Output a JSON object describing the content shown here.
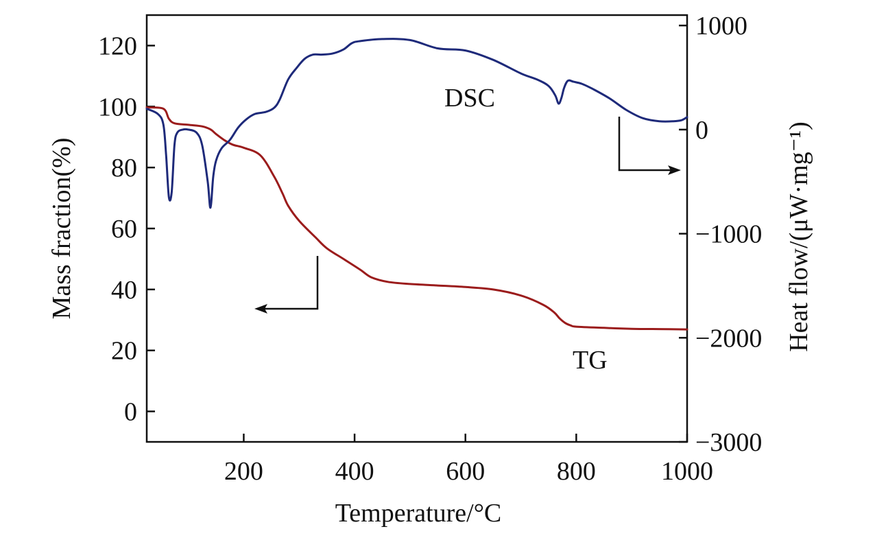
{
  "chart_data": {
    "type": "line",
    "xlabel": "Temperature/°C",
    "ylabel_left": "Mass fraction(%)",
    "ylabel_right": "Heat flow/(μW·mg⁻¹)",
    "xlim": [
      25,
      1000
    ],
    "ylim_left": [
      -10,
      130
    ],
    "ylim_right": [
      -3000,
      1100
    ],
    "x_ticks": [
      200,
      400,
      600,
      800,
      1000
    ],
    "x_tick_labels": [
      "200",
      "400",
      "600",
      "800",
      "1000"
    ],
    "y_left_ticks": [
      0,
      20,
      40,
      60,
      80,
      100,
      120
    ],
    "y_left_tick_labels": [
      "0",
      "20",
      "40",
      "60",
      "80",
      "100",
      "120"
    ],
    "y_right_ticks": [
      -3000,
      -2000,
      -1000,
      0,
      1000
    ],
    "y_right_tick_labels": [
      "−3000",
      "−2000",
      "−1000",
      "0",
      "1000"
    ],
    "grid": false,
    "series": [
      {
        "name": "TG",
        "axis": "left",
        "color": "#9b1c1c",
        "x": [
          25,
          55,
          65,
          75,
          100,
          125,
          140,
          150,
          165,
          180,
          200,
          230,
          255,
          270,
          280,
          300,
          330,
          350,
          380,
          410,
          430,
          460,
          500,
          550,
          600,
          650,
          700,
          740,
          760,
          770,
          780,
          790,
          800,
          850,
          900,
          950,
          1000
        ],
        "values": [
          99.7,
          99.3,
          96,
          94.5,
          94,
          93.5,
          92.5,
          91,
          89,
          87.5,
          86.5,
          84,
          77,
          71.5,
          67.5,
          62.5,
          57,
          53.5,
          50,
          46.5,
          44,
          42.5,
          41.8,
          41.3,
          40.8,
          40,
          38,
          35,
          32.5,
          30.5,
          29,
          28.2,
          27.8,
          27.4,
          27.1,
          27,
          26.9
        ]
      },
      {
        "name": "DSC",
        "axis": "right",
        "color": "#1e2a7a",
        "x": [
          25,
          45,
          55,
          60,
          65,
          70,
          75,
          80,
          90,
          100,
          115,
          125,
          135,
          140,
          145,
          150,
          160,
          175,
          190,
          205,
          220,
          240,
          255,
          265,
          280,
          295,
          310,
          325,
          340,
          360,
          380,
          395,
          410,
          450,
          500,
          550,
          600,
          650,
          700,
          730,
          750,
          762,
          768,
          773,
          778,
          785,
          795,
          810,
          830,
          860,
          890,
          920,
          950,
          975,
          990,
          1000
        ],
        "values": [
          200,
          150,
          50,
          -250,
          -650,
          -600,
          -150,
          -30,
          0,
          0,
          -30,
          -150,
          -500,
          -750,
          -450,
          -300,
          -180,
          -100,
          20,
          100,
          150,
          170,
          210,
          290,
          480,
          590,
          680,
          720,
          720,
          730,
          770,
          830,
          850,
          870,
          860,
          780,
          760,
          670,
          540,
          480,
          420,
          330,
          250,
          300,
          400,
          470,
          460,
          440,
          390,
          300,
          190,
          110,
          80,
          80,
          90,
          120
        ]
      }
    ],
    "annotations": [
      "DSC",
      "TG"
    ]
  }
}
